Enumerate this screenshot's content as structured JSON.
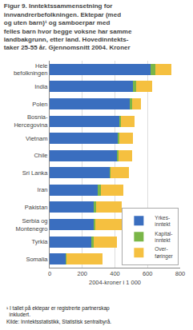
{
  "chart_data": {
    "type": "bar",
    "orientation": "horizontal",
    "stacked": true,
    "title": "Figur 9. Inntektssammensetning for\ninnvandrerbefolkningen. Ektepar (med\nog uten barn)¹ og samboerpar med\nfelles barn hvor begge voksne har samme\nlandbakgrunn, etter land. Hovedinntekts-\ntaker 25-55 år. Gjennomsnitt 2004. Kroner",
    "categories": [
      "Hele\nbefolkningen",
      "India",
      "Polen",
      "Bosnia-\nHercegovina",
      "Vietnam",
      "Chile",
      "Sri Lanka",
      "Iran",
      "Pakistan",
      "Serbia og\nMontenegro",
      "Tyrkia",
      "Somalia"
    ],
    "series": [
      {
        "name": "Yrkes-\ninntekt",
        "color": "#3a6ebf",
        "values": [
          620,
          510,
          490,
          430,
          420,
          415,
          370,
          295,
          270,
          270,
          260,
          100
        ]
      },
      {
        "name": "Kapital-\ninntekt",
        "color": "#7ab648",
        "values": [
          30,
          20,
          15,
          8,
          5,
          5,
          5,
          20,
          15,
          8,
          8,
          5
        ]
      },
      {
        "name": "Over-\nføringer",
        "color": "#f5c040",
        "values": [
          95,
          100,
          55,
          80,
          85,
          85,
          110,
          135,
          155,
          170,
          145,
          220
        ]
      }
    ],
    "xlabel": "2004-kroner i 1 000",
    "xlim": [
      0,
      800
    ],
    "xticks": [
      0,
      200,
      400,
      600,
      800
    ],
    "grid": true,
    "legend": "lower right",
    "annotations": [
      "¹ I tallet på ektepar er registrerte partnerskap\n  inkludert.\nKilde: Inntektsstatistikk, Statistisk sentralbyrå."
    ]
  }
}
